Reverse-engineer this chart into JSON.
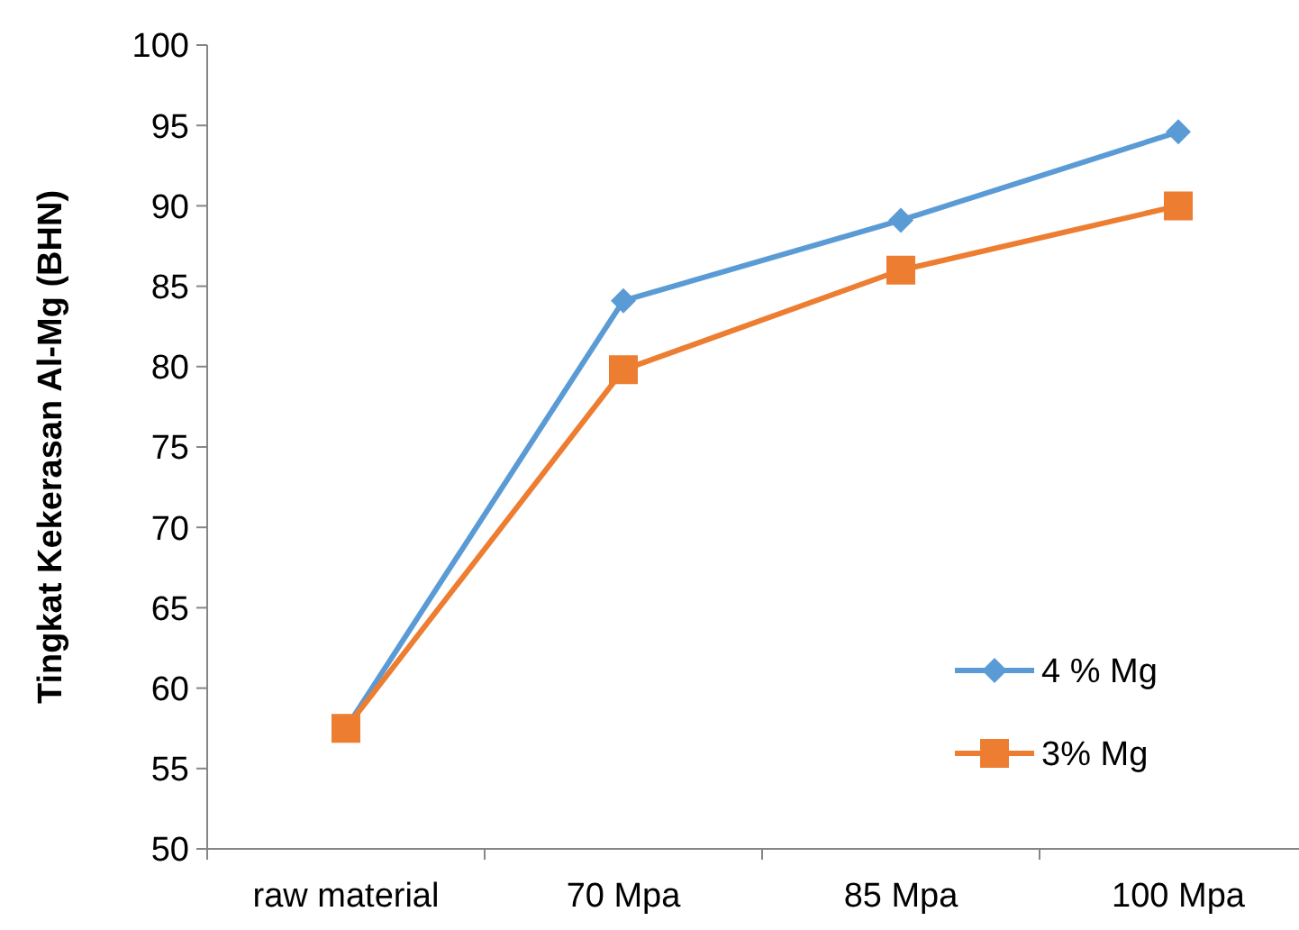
{
  "chart_data": {
    "type": "line",
    "ylabel": "Tingkat Kekerasan Al-Mg (BHN)",
    "categories": [
      "raw material",
      "70 Mpa",
      "85 Mpa",
      "100 Mpa"
    ],
    "series": [
      {
        "name": "4 % Mg",
        "color": "#5b9bd5",
        "marker": "diamond",
        "values": [
          57.5,
          84.1,
          89.1,
          94.6
        ]
      },
      {
        "name": "3% Mg",
        "color": "#ed7d31",
        "marker": "square",
        "values": [
          57.5,
          79.8,
          86.0,
          90.0
        ]
      }
    ],
    "ylim": [
      50,
      100
    ],
    "yticks": [
      50,
      55,
      60,
      65,
      70,
      75,
      80,
      85,
      90,
      95,
      100
    ],
    "grid": false,
    "legend": "right",
    "line_style": "solid"
  }
}
